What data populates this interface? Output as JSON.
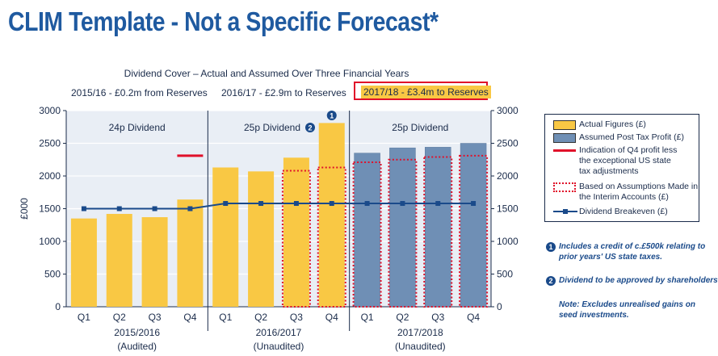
{
  "page": {
    "title": "CLIM Template - Not a Specific Forecast*",
    "subtitle": "Dividend Cover – Actual and Assumed Over Three Financial Years",
    "periods": [
      "2015/16 - £0.2m from Reserves",
      "2016/17 - £2.9m to Reserves",
      "2017/18 - £3.4m to Reserves"
    ]
  },
  "legend": {
    "actual": "Actual Figures (£)",
    "assumed": "Assumed Post Tax Profit (£)",
    "q4_line_1": "Indication of Q4 profit less",
    "q4_line_2": "the exceptional US state",
    "q4_line_3": "tax adjustments",
    "interim_1": "Based on Assumptions Made in",
    "interim_2": "the Interim Accounts (£)",
    "breakeven": "Dividend Breakeven (£)"
  },
  "notes": {
    "note1_marker": "1",
    "note1_line1": "Includes  a credit of c.£500k relating to",
    "note1_line2": "prior years' US state taxes.",
    "note2_marker": "2",
    "note2_line1": "Dividend to be approved by shareholders",
    "note3_line1": "Note: Excludes unrealised gains on",
    "note3_line2": "seed investments."
  },
  "colors": {
    "actual": "#f9c844",
    "assumed": "#6f8fb5",
    "q4_indicator": "#e0102a",
    "interim": "#e0102a",
    "breakeven": "#1a4a8a",
    "title": "#1f5aa0"
  },
  "chart_data": {
    "type": "bar",
    "ylabel": "£000",
    "ylim": [
      0,
      3000
    ],
    "yticks": [
      0,
      500,
      1000,
      1500,
      2000,
      2500,
      3000
    ],
    "categories": [
      "Q1",
      "Q2",
      "Q3",
      "Q4",
      "Q1",
      "Q2",
      "Q3",
      "Q4",
      "Q1",
      "Q2",
      "Q3",
      "Q4"
    ],
    "groups": [
      {
        "label": "2015/2016",
        "sublabel": "(Audited)",
        "dividend": "24p Dividend",
        "note_marker": ""
      },
      {
        "label": "2016/2017",
        "sublabel": "(Unaudited)",
        "dividend": "25p Dividend",
        "note_marker": "2"
      },
      {
        "label": "2017/2018",
        "sublabel": "(Unaudited)",
        "dividend": "25p Dividend",
        "note_marker": ""
      }
    ],
    "series": [
      {
        "name": "Actual Figures (£)",
        "values": [
          1350,
          1420,
          1370,
          1640,
          2130,
          2070,
          2280,
          2810,
          null,
          null,
          null,
          null
        ]
      },
      {
        "name": "Assumed Post Tax Profit (£)",
        "values": [
          null,
          null,
          null,
          null,
          null,
          null,
          null,
          null,
          2350,
          2430,
          2440,
          2500
        ]
      },
      {
        "name": "Based on Assumptions Made in the Interim Accounts (£)",
        "values": [
          null,
          null,
          null,
          null,
          null,
          null,
          2080,
          2130,
          2210,
          2250,
          2290,
          2310
        ]
      },
      {
        "name": "Indication of Q4 profit less the exceptional US state tax adjustments",
        "values": [
          null,
          null,
          null,
          2310,
          null,
          null,
          null,
          null,
          null,
          null,
          null,
          null
        ]
      },
      {
        "name": "Dividend Breakeven (£)",
        "values": [
          1500,
          1500,
          1500,
          1500,
          1580,
          1580,
          1580,
          1580,
          1580,
          1580,
          1580,
          1580
        ]
      }
    ],
    "bar_note_marker": {
      "index": 7,
      "marker": "1"
    }
  }
}
